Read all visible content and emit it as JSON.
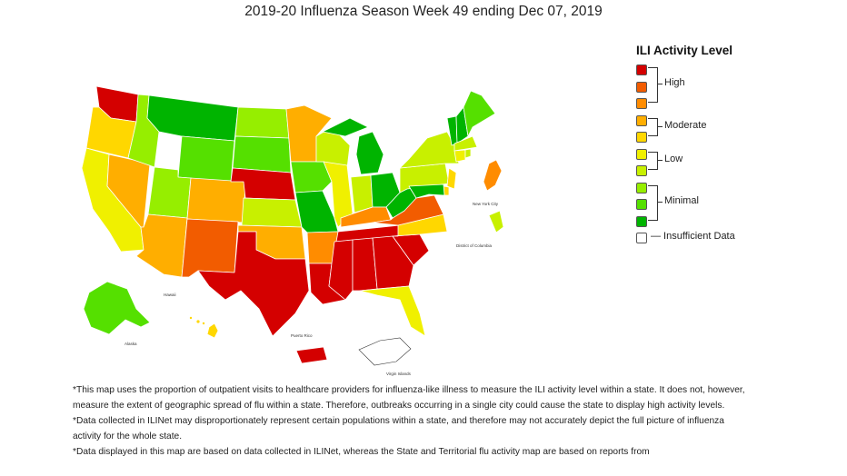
{
  "title": "2019-20 Influenza Season Week 49 ending Dec 07, 2019",
  "legend": {
    "title": "ILI Activity Level",
    "groups": {
      "high": "High",
      "moderate": "Moderate",
      "low": "Low",
      "minimal": "Minimal"
    },
    "insufficient": "— Insufficient Data",
    "colors": {
      "level10": "#d40000",
      "level9": "#f25c00",
      "level8": "#ff8c00",
      "level7": "#ffae00",
      "level6": "#ffd700",
      "level5": "#f0f000",
      "level4": "#c8f000",
      "level3": "#96ee00",
      "level2": "#55e000",
      "level1": "#00b400",
      "insufficient": "#ffffff"
    }
  },
  "map_labels": {
    "new_york_city": "New York City",
    "district_of_columbia": "District of Columbia",
    "hawaii": "Hawaii",
    "alaska": "Alaska",
    "puerto_rico": "Puerto Rico",
    "virgin_islands": "Virgin Islands"
  },
  "notes": [
    "*This map uses the proportion of outpatient visits to healthcare providers for influenza-like illness to measure the ILI activity level within a state. It does not, however, measure the extent of geographic spread of flu within a state. Therefore, outbreaks occurring in a single city could cause the state to display high activity levels.",
    "*Data collected in ILINet may disproportionately represent certain populations within a state, and therefore may not accurately depict the full picture of influenza activity for the whole state.",
    "*Data displayed in this map are based on data collected in ILINet, whereas the State and Territorial flu activity map are based on reports from"
  ]
}
